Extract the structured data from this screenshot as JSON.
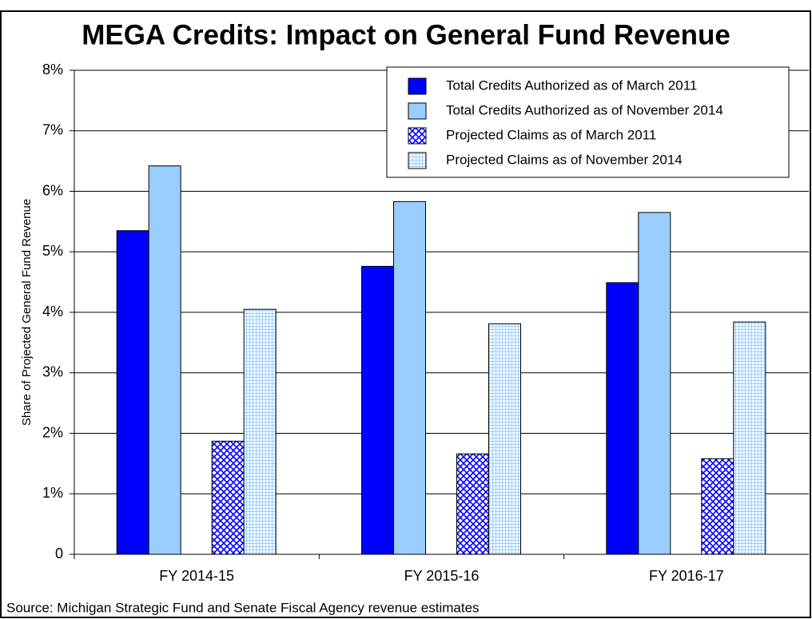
{
  "chart_data": {
    "type": "bar",
    "title": "MEGA Credits: Impact on General Fund Revenue",
    "y_label": "Share of Projected General Fund Revenue",
    "source": "Source: Michigan Strategic Fund and Senate Fiscal Agency revenue estimates",
    "categories": [
      "FY 2014-15",
      "FY 2015-16",
      "FY 2016-17"
    ],
    "series": [
      {
        "name": "Total Credits Authorized as of March 2011",
        "color": "#0000ff",
        "pattern": "solid",
        "values": [
          5.35,
          4.76,
          4.49
        ]
      },
      {
        "name": "Total Credits Authorized as of November 2014",
        "color": "#99ccff",
        "pattern": "solid",
        "values": [
          6.42,
          5.83,
          5.65
        ]
      },
      {
        "name": "Projected Claims as of March 2011",
        "color": "#0000ff",
        "pattern": "crosshatch",
        "values": [
          1.87,
          1.66,
          1.58
        ]
      },
      {
        "name": "Projected Claims as of November 2014",
        "color": "#99ccff",
        "pattern": "grid",
        "values": [
          4.05,
          3.81,
          3.84
        ]
      }
    ],
    "ylim": [
      0,
      8
    ],
    "yticks": [
      0,
      {
        "value": 1,
        "label": "1%"
      },
      {
        "value": 2,
        "label": "2%"
      },
      {
        "value": 3,
        "label": "3%"
      },
      {
        "value": 4,
        "label": "4%"
      },
      {
        "value": 5,
        "label": "5%"
      },
      {
        "value": 6,
        "label": "6%"
      },
      {
        "value": 7,
        "label": "7%"
      },
      {
        "value": 8,
        "label": "8%"
      }
    ],
    "grid": true,
    "legend": "top-right"
  }
}
